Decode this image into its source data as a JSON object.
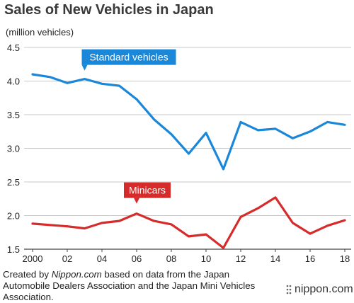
{
  "chart_data": {
    "type": "line",
    "title": "Sales of New Vehicles in Japan",
    "ylabel": "(million vehicles)",
    "xlabel": "",
    "ylim": [
      1.5,
      4.5
    ],
    "yticks": [
      "1.5",
      "2.0",
      "2.5",
      "3.0",
      "3.5",
      "4.0",
      "4.5"
    ],
    "xticks": [
      "2000",
      "02",
      "04",
      "06",
      "08",
      "10",
      "12",
      "14",
      "16",
      "18"
    ],
    "x": [
      2000,
      2001,
      2002,
      2003,
      2004,
      2005,
      2006,
      2007,
      2008,
      2009,
      2010,
      2011,
      2012,
      2013,
      2014,
      2015,
      2016,
      2017,
      2018
    ],
    "grid": "horizontal",
    "series": [
      {
        "name": "Standard vehicles",
        "color": "#1a87d8",
        "values": [
          4.1,
          4.06,
          3.97,
          4.03,
          3.96,
          3.93,
          3.73,
          3.43,
          3.21,
          2.92,
          3.23,
          2.69,
          3.39,
          3.27,
          3.29,
          3.15,
          3.25,
          3.39,
          3.35
        ]
      },
      {
        "name": "Minicars",
        "color": "#d62b2b",
        "values": [
          1.88,
          1.86,
          1.84,
          1.81,
          1.89,
          1.92,
          2.03,
          1.92,
          1.87,
          1.69,
          1.72,
          1.52,
          1.98,
          2.11,
          2.27,
          1.89,
          1.73,
          1.85,
          1.93
        ]
      }
    ]
  },
  "footer": {
    "prefix": "Created by ",
    "source_site": "Nippon.com",
    "suffix": " based on data from the Japan Automobile Dealers Association and the Japan Mini Vehicles Association."
  },
  "brand": {
    "name": "nippon.com",
    "icon": "nippon-dots-icon"
  }
}
